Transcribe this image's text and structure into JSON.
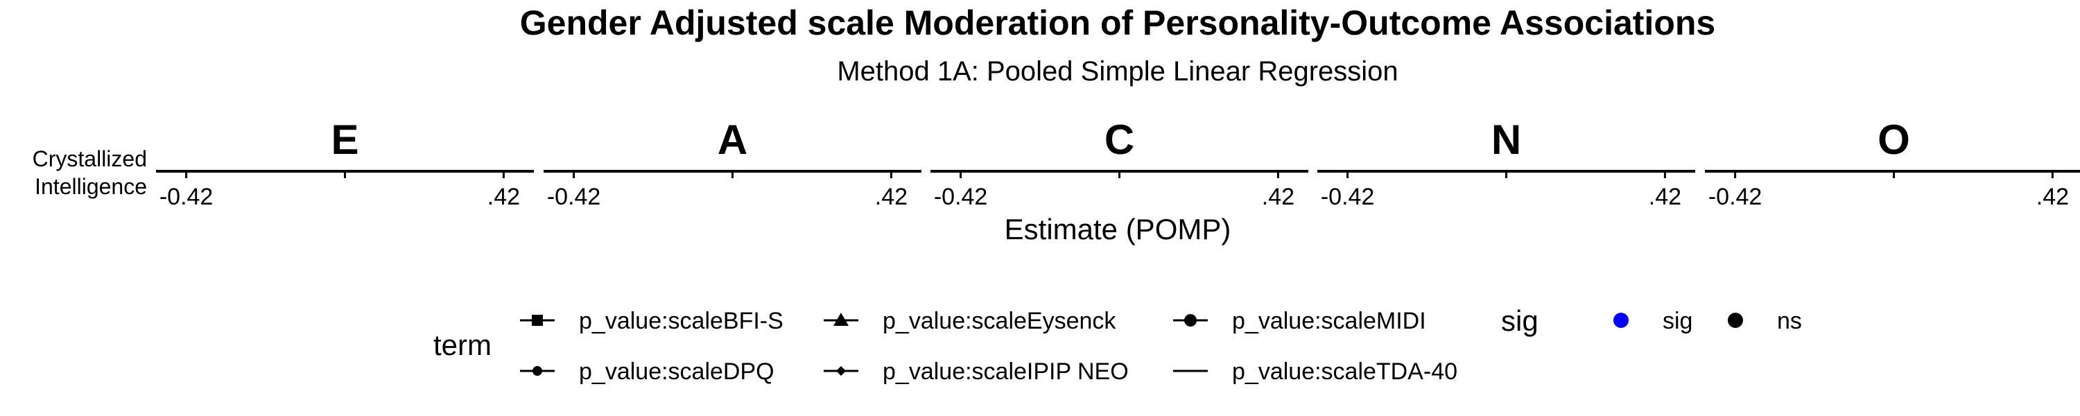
{
  "chart_data": {
    "type": "scatter",
    "title": "Gender Adjusted scale Moderation of Personality-Outcome Associations",
    "subtitle": "Method 1A: Pooled Simple Linear Regression",
    "xlabel": "Estimate (POMP)",
    "ylabel": "",
    "y_categories": [
      "Crystallized Intelligence"
    ],
    "facets": [
      "E",
      "A",
      "C",
      "N",
      "O"
    ],
    "xlim": [
      -0.5,
      0.5
    ],
    "x_ticks": [
      -0.42,
      0,
      0.42
    ],
    "x_tick_labels": [
      "-0.42",
      "",
      ".42"
    ],
    "series": [],
    "legends": [
      {
        "title": "term",
        "position": "bottom",
        "items": [
          {
            "label": "p_value:scaleBFI-S",
            "shape": "square"
          },
          {
            "label": "p_value:scaleEysenck",
            "shape": "triangle"
          },
          {
            "label": "p_value:scaleMIDI",
            "shape": "circle"
          },
          {
            "label": "p_value:scaleDPQ",
            "shape": "small-circle"
          },
          {
            "label": "p_value:scaleIPIP NEO",
            "shape": "diamond"
          },
          {
            "label": "p_value:scaleTDA-40",
            "shape": "none"
          }
        ]
      },
      {
        "title": "sig",
        "position": "bottom",
        "items": [
          {
            "label": "sig",
            "color": "#0000ff"
          },
          {
            "label": "ns",
            "color": "#000000"
          }
        ]
      }
    ]
  }
}
